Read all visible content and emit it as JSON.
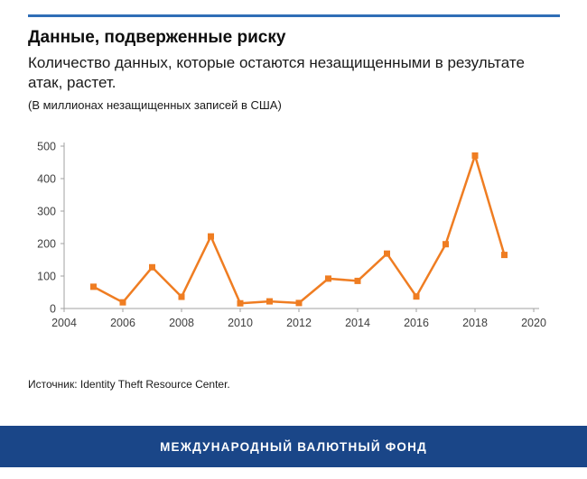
{
  "header": {
    "title": "Данные, подверженные риску",
    "subtitle": "Количество данных, которые остаются незащищенными в результате атак, растет.",
    "units_note": "(В миллионах незащищенных записей в США)"
  },
  "chart_data": {
    "type": "line",
    "title": "Данные, подверженные риску",
    "xlabel": "",
    "ylabel": "",
    "x": [
      2005,
      2006,
      2007,
      2008,
      2009,
      2010,
      2011,
      2012,
      2013,
      2014,
      2015,
      2016,
      2017,
      2018,
      2019
    ],
    "values": [
      67,
      19,
      127,
      36,
      222,
      16,
      22,
      17,
      92,
      85,
      169,
      37,
      198,
      471,
      165
    ],
    "xlim": [
      2004,
      2020
    ],
    "ylim": [
      0,
      500
    ],
    "x_ticks": [
      2004,
      2006,
      2008,
      2010,
      2012,
      2014,
      2016,
      2018,
      2020
    ],
    "y_ticks": [
      0,
      100,
      200,
      300,
      400,
      500
    ],
    "marker": "square",
    "grid": false,
    "legend": "none",
    "line_color": "#ef7d22"
  },
  "footer": {
    "source": "Источник: Identity Theft Resource Center.",
    "org_name": "МЕЖДУНАРОДНЫЙ ВАЛЮТНЫЙ ФОНД"
  },
  "colors": {
    "accent_orange": "#ef7d22",
    "imf_blue": "#1a4688",
    "top_rule_blue": "#2f6eb6",
    "axis_gray": "#a0a0a0",
    "tick_label_gray": "#3f3f3f"
  }
}
